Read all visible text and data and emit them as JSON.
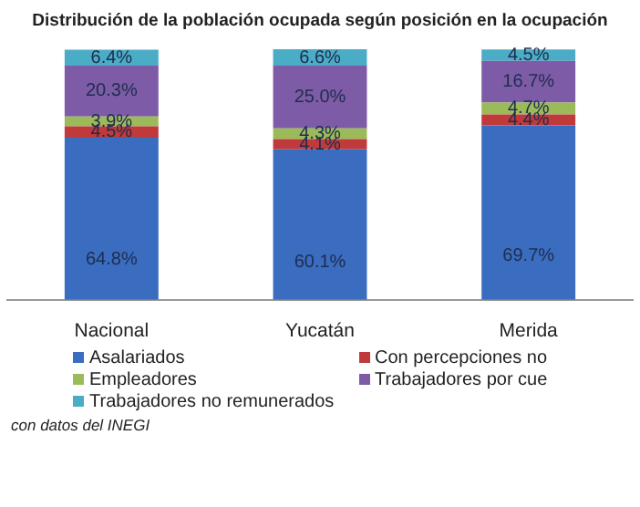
{
  "chart_data": {
    "type": "bar",
    "title": "Distribución de la población ocupada según posición en la ocupación",
    "categories": [
      "Nacional",
      "Yucatán",
      "Merida"
    ],
    "stacked": true,
    "tick_labels": "x",
    "legend": "bottom",
    "series": [
      {
        "name": "Asalariados",
        "color": "#3a6cc0",
        "values": [
          64.8,
          60.1,
          69.7
        ],
        "value_labels": [
          "64.8%",
          "60.1%",
          "69.7%"
        ]
      },
      {
        "name": "Con percepciones no",
        "color": "#c0393b",
        "values": [
          4.5,
          4.1,
          4.4
        ],
        "value_labels": [
          "4.5%",
          "4.1%",
          "4.4%"
        ]
      },
      {
        "name": "Empleadores",
        "color": "#9bbb59",
        "values": [
          3.9,
          4.3,
          4.7
        ],
        "value_labels": [
          "3.9%",
          "4.3%",
          "4.7%"
        ]
      },
      {
        "name": "Trabajadores por cue",
        "color": "#7d5ba6",
        "values": [
          20.3,
          25.0,
          16.7
        ],
        "value_labels": [
          "20.3%",
          "25.0%",
          "16.7%"
        ]
      },
      {
        "name": "Trabajadores no remunerados",
        "color": "#4bacc6",
        "values": [
          6.4,
          6.6,
          4.5
        ],
        "value_labels": [
          "6.4%",
          "6.6%",
          "4.5%"
        ]
      }
    ],
    "annotations": [
      "con datos del INEGI"
    ]
  }
}
